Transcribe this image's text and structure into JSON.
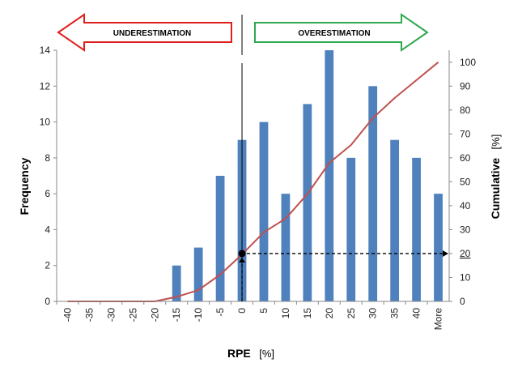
{
  "chart_data": {
    "type": "bar",
    "categories": [
      "-40",
      "-35",
      "-30",
      "-25",
      "-20",
      "-15",
      "-10",
      "-5",
      "0",
      "5",
      "10",
      "15",
      "20",
      "25",
      "30",
      "35",
      "40",
      "More"
    ],
    "series": [
      {
        "values": [
          0,
          0,
          0,
          0,
          0,
          2,
          3,
          7,
          9,
          10,
          6,
          11,
          14,
          8,
          12,
          9,
          8,
          6
        ]
      },
      {
        "values": [
          0,
          0,
          0,
          0,
          0,
          1.9,
          4.7,
          11.2,
          19.6,
          28.9,
          34.6,
          44.9,
          57.9,
          65.4,
          76.6,
          85.0,
          92.5,
          100.0
        ]
      }
    ],
    "y_axis": {
      "title": "Frequency",
      "range": [
        0,
        14
      ],
      "ticks": [
        "0",
        "2",
        "4",
        "6",
        "8",
        "10",
        "12",
        "14"
      ]
    },
    "y2_axis": {
      "title": "Cumulative",
      "unit": "[%]",
      "range": [
        0,
        105
      ],
      "ticks": [
        "0",
        "10",
        "20",
        "30",
        "40",
        "50",
        "60",
        "70",
        "80",
        "90",
        "100"
      ]
    },
    "x_axis": {
      "title": "RPE",
      "unit": "[%]"
    },
    "annotations": {
      "left_arrow": "UNDERESTIMATION",
      "right_arrow": "OVERESTIMATION",
      "highlight_value": "20",
      "highlight_point": {
        "x": "0",
        "y": 20
      }
    },
    "grid": false,
    "colors": {
      "bar": "#4f81bd",
      "line": "#c0504d",
      "left_arrow": "#e0201c",
      "right_arrow": "#2fa84f",
      "highlight": "#c00000"
    }
  }
}
